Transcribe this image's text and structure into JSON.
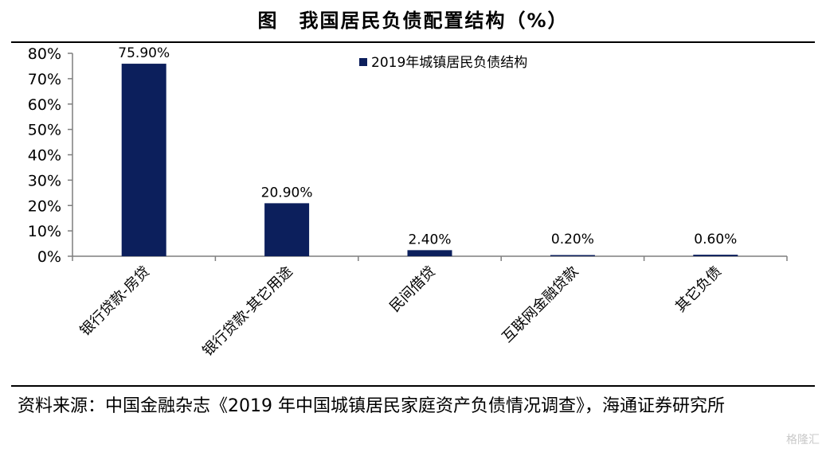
{
  "page": {
    "title": "图　我国居民负债配置结构（%）",
    "source": "资料来源：中国金融杂志《2019 年中国城镇居民家庭资产负债情况调查》，海通证券研究所",
    "watermark": "格隆汇"
  },
  "chart_data": {
    "type": "bar",
    "categories": [
      "银行贷款-房贷",
      "银行贷款-其它用途",
      "民间借贷",
      "互联网金融贷款",
      "其它负债"
    ],
    "series": [
      {
        "name": "2019年城镇居民负债结构",
        "values": [
          75.9,
          20.9,
          2.4,
          0.2,
          0.6
        ],
        "labels": [
          "75.90%",
          "20.90%",
          "2.40%",
          "0.20%",
          "0.60%"
        ]
      }
    ],
    "ylim": [
      0,
      80
    ],
    "yticks": [
      "0%",
      "10%",
      "20%",
      "30%",
      "40%",
      "50%",
      "60%",
      "70%",
      "80%"
    ],
    "ytick_values": [
      0,
      10,
      20,
      30,
      40,
      50,
      60,
      70,
      80
    ],
    "grid": false,
    "legend_position": "top-center",
    "colors": {
      "bar": "#0c1f5c",
      "axis": "#7f7f7f"
    }
  }
}
